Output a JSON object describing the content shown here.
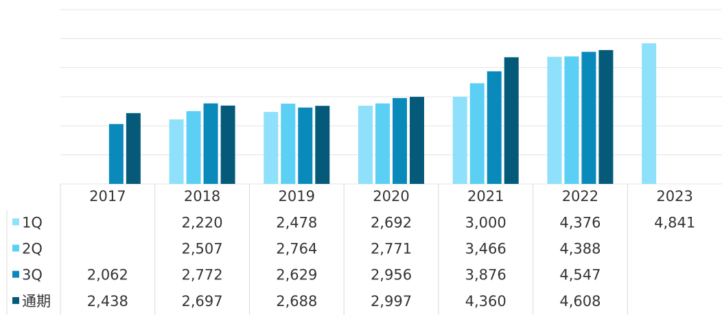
{
  "chart_data": {
    "type": "bar",
    "categories": [
      "2017",
      "2018",
      "2019",
      "2020",
      "2021",
      "2022",
      "2023"
    ],
    "series": [
      {
        "name": "1Q",
        "color": "#8ee0fb",
        "values": [
          null,
          2220,
          2478,
          2692,
          3000,
          4376,
          4841
        ],
        "value_labels": [
          null,
          "2,220",
          "2,478",
          "2,692",
          "3,000",
          "4,376",
          "4,841"
        ]
      },
      {
        "name": "2Q",
        "color": "#5ccff5",
        "values": [
          null,
          2507,
          2764,
          2771,
          3466,
          4388,
          null
        ],
        "value_labels": [
          null,
          "2,507",
          "2,764",
          "2,771",
          "3,466",
          "4,388",
          null
        ]
      },
      {
        "name": "3Q",
        "color": "#0a8abb",
        "values": [
          2062,
          2772,
          2629,
          2956,
          3876,
          4547,
          null
        ],
        "value_labels": [
          "2,062",
          "2,772",
          "2,629",
          "2,956",
          "3,876",
          "4,547",
          null
        ]
      },
      {
        "name": "通期",
        "color": "#055a7a",
        "values": [
          2438,
          2697,
          2688,
          2997,
          4360,
          4608,
          null
        ],
        "value_labels": [
          "2,438",
          "2,697",
          "2,688",
          "2,997",
          "4,360",
          "4,608",
          null
        ]
      }
    ],
    "ylim": [
      0,
      6000
    ],
    "yticks": [
      0,
      1000,
      2000,
      3000,
      4000,
      5000,
      6000
    ],
    "grid": true
  }
}
